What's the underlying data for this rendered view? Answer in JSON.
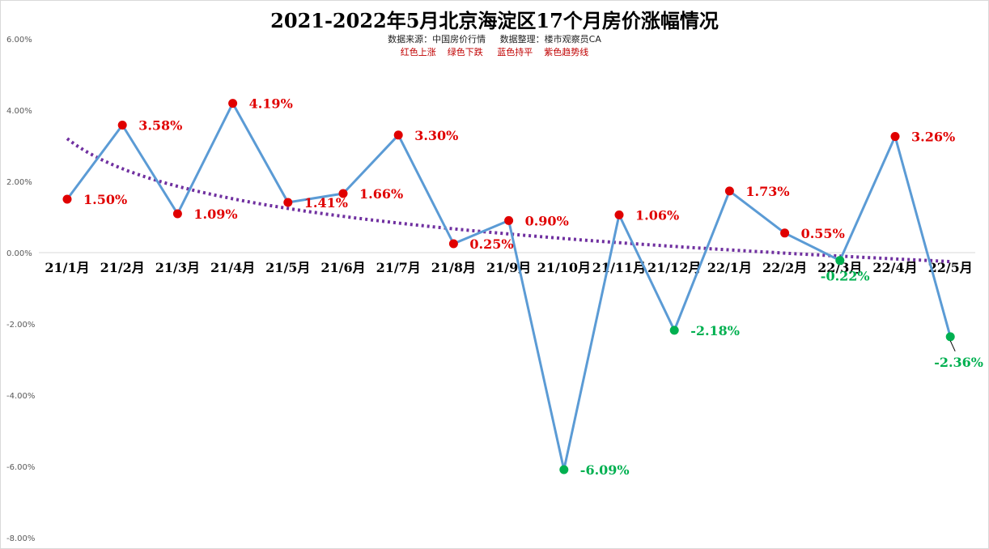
{
  "chart_data": {
    "type": "line",
    "title": "2021-2022年5月北京海淀区17个月房价涨幅情况",
    "subtitle": "数据来源：中国房价行情     数据整理：楼市观察员CA",
    "legend_note": "红色上涨    绿色下跌     蓝色持平    紫色趋势线",
    "categories": [
      "21/1月",
      "21/2月",
      "21/3月",
      "21/4月",
      "21/5月",
      "21/6月",
      "21/7月",
      "21/8月",
      "21/9月",
      "21/10月",
      "21/11月",
      "21/12月",
      "22/1月",
      "22/2月",
      "22/3月",
      "22/4月",
      "22/5月"
    ],
    "series": [
      {
        "values": [
          1.5,
          3.58,
          1.09,
          4.19,
          1.41,
          1.66,
          3.3,
          0.25,
          0.9,
          -6.09,
          1.06,
          -2.18,
          1.73,
          0.55,
          -0.22,
          3.26,
          -2.36
        ],
        "data_labels": [
          "1.50%",
          "3.58%",
          "1.09%",
          "4.19%",
          "1.41%",
          "1.66%",
          "3.30%",
          "0.25%",
          "0.90%",
          "-6.09%",
          "1.06%",
          "-2.18%",
          "1.73%",
          "0.55%",
          "-0.22%",
          "3.26%",
          "-2.36%"
        ]
      }
    ],
    "trendline": {
      "type": "logarithmic",
      "start": 3.2,
      "end": -0.25
    },
    "y_ticks": [
      "6.00%",
      "4.00%",
      "2.00%",
      "0.00%",
      "-2.00%",
      "-4.00%",
      "-6.00%",
      "-8.00%"
    ],
    "ylim": [
      -8,
      6
    ],
    "grid": false,
    "colors": {
      "line": "#5b9bd5",
      "up": "#e00000",
      "down": "#00b050",
      "trend": "#7030a0",
      "up_label": "#e00000",
      "down_label": "#00b050"
    }
  }
}
